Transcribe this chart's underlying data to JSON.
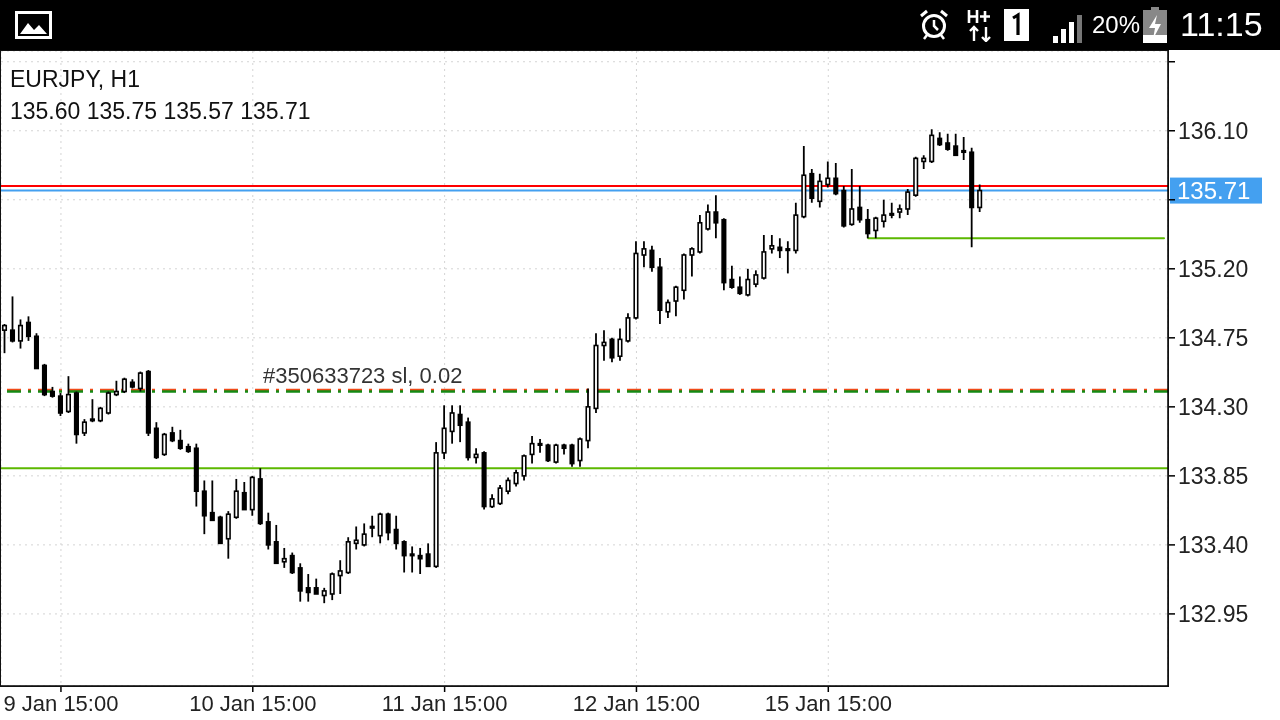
{
  "chart_data": {
    "type": "candlestick",
    "title": "EURJPY, H1",
    "subtitle": "135.60 135.75 135.57 135.71",
    "categories": [
      null,
      null,
      null,
      null,
      null,
      null,
      null,
      "9 Jan 15:00",
      null,
      null,
      null,
      null,
      null,
      null,
      null,
      null,
      null,
      null,
      null,
      null,
      null,
      null,
      null,
      null,
      null,
      null,
      null,
      null,
      null,
      null,
      null,
      "10 Jan 15:00",
      null,
      null,
      null,
      null,
      null,
      null,
      null,
      null,
      null,
      null,
      null,
      null,
      null,
      null,
      null,
      null,
      null,
      null,
      null,
      null,
      null,
      null,
      null,
      "11 Jan 15:00",
      null,
      null,
      null,
      null,
      null,
      null,
      null,
      null,
      null,
      null,
      null,
      null,
      null,
      null,
      null,
      null,
      null,
      null,
      null,
      null,
      null,
      null,
      null,
      "12 Jan 15:00",
      null,
      null,
      null,
      null,
      null,
      null,
      null,
      null,
      null,
      null,
      null,
      null,
      null,
      null,
      null,
      null,
      null,
      null,
      null,
      null,
      null,
      null,
      null,
      "15 Jan 15:00",
      null,
      null,
      null,
      null,
      null,
      null,
      null,
      null,
      null,
      null,
      null,
      null,
      null,
      null,
      null,
      null,
      null,
      null,
      null,
      null,
      null,
      null,
      null,
      null,
      null,
      null,
      null,
      null,
      null,
      null,
      null,
      null,
      null,
      null,
      null,
      null,
      null,
      null,
      null,
      null,
      null,
      null
    ],
    "ohlc": [
      [
        134.8,
        134.84,
        134.65,
        134.83
      ],
      [
        134.8,
        135.02,
        134.72,
        134.73
      ],
      [
        134.73,
        134.87,
        134.68,
        134.83
      ],
      [
        134.85,
        134.89,
        134.73,
        134.76
      ],
      [
        134.76,
        134.78,
        134.55,
        134.55
      ],
      [
        134.57,
        134.58,
        134.37,
        134.38
      ],
      [
        134.4,
        134.43,
        134.36,
        134.37
      ],
      [
        134.37,
        134.39,
        134.24,
        134.26
      ],
      [
        134.27,
        134.5,
        134.26,
        134.38
      ],
      [
        134.39,
        134.4,
        134.06,
        134.12
      ],
      [
        134.13,
        134.22,
        134.11,
        134.2
      ],
      [
        134.22,
        134.35,
        134.2,
        134.21
      ],
      [
        134.21,
        134.3,
        134.2,
        134.29
      ],
      [
        134.26,
        134.4,
        134.25,
        134.39
      ],
      [
        134.38,
        134.47,
        134.37,
        134.4
      ],
      [
        134.4,
        134.49,
        134.39,
        134.48
      ],
      [
        134.46,
        134.48,
        134.42,
        134.43
      ],
      [
        134.42,
        134.53,
        134.4,
        134.52
      ],
      [
        134.53,
        134.54,
        134.11,
        134.13
      ],
      [
        134.16,
        134.2,
        133.96,
        133.97
      ],
      [
        133.99,
        134.13,
        133.98,
        134.12
      ],
      [
        134.13,
        134.17,
        134.07,
        134.08
      ],
      [
        134.08,
        134.15,
        134.02,
        134.03
      ],
      [
        134.04,
        134.06,
        134.0,
        134.01
      ],
      [
        134.03,
        134.06,
        133.65,
        133.75
      ],
      [
        133.75,
        133.82,
        133.47,
        133.59
      ],
      [
        133.61,
        133.82,
        133.56,
        133.56
      ],
      [
        133.58,
        133.59,
        133.41,
        133.41
      ],
      [
        133.44,
        133.62,
        133.31,
        133.6
      ],
      [
        133.58,
        133.83,
        133.57,
        133.75
      ],
      [
        133.74,
        133.81,
        133.63,
        133.63
      ],
      [
        133.63,
        133.85,
        133.59,
        133.84
      ],
      [
        133.83,
        133.9,
        133.53,
        133.54
      ],
      [
        133.55,
        133.61,
        133.37,
        133.4
      ],
      [
        133.42,
        133.53,
        133.28,
        133.28
      ],
      [
        133.29,
        133.38,
        133.25,
        133.31
      ],
      [
        133.33,
        133.35,
        133.21,
        133.22
      ],
      [
        133.25,
        133.28,
        133.03,
        133.1
      ],
      [
        133.12,
        133.21,
        133.03,
        133.09
      ],
      [
        133.12,
        133.18,
        133.08,
        133.08
      ],
      [
        133.07,
        133.12,
        133.02,
        133.1
      ],
      [
        133.08,
        133.22,
        133.04,
        133.21
      ],
      [
        133.2,
        133.3,
        133.08,
        133.23
      ],
      [
        133.22,
        133.45,
        133.21,
        133.42
      ],
      [
        133.41,
        133.52,
        133.37,
        133.43
      ],
      [
        133.4,
        133.54,
        133.39,
        133.47
      ],
      [
        133.52,
        133.59,
        133.45,
        133.51
      ],
      [
        133.46,
        133.61,
        133.41,
        133.6
      ],
      [
        133.6,
        133.61,
        133.43,
        133.48
      ],
      [
        133.5,
        133.59,
        133.37,
        133.41
      ],
      [
        133.42,
        133.43,
        133.22,
        133.33
      ],
      [
        133.34,
        133.39,
        133.22,
        133.33
      ],
      [
        133.33,
        133.38,
        133.21,
        133.31
      ],
      [
        133.34,
        133.41,
        133.26,
        133.26
      ],
      [
        133.26,
        134.07,
        133.25,
        134.0
      ],
      [
        134.0,
        134.31,
        133.96,
        134.16
      ],
      [
        134.14,
        134.31,
        134.06,
        134.26
      ],
      [
        134.25,
        134.31,
        134.07,
        134.18
      ],
      [
        134.2,
        134.23,
        133.95,
        133.97
      ],
      [
        133.97,
        134.03,
        133.93,
        133.99
      ],
      [
        134.0,
        134.01,
        133.63,
        133.65
      ],
      [
        133.65,
        133.73,
        133.64,
        133.7
      ],
      [
        133.67,
        133.79,
        133.66,
        133.77
      ],
      [
        133.75,
        133.84,
        133.73,
        133.82
      ],
      [
        133.8,
        133.89,
        133.78,
        133.87
      ],
      [
        133.85,
        133.99,
        133.82,
        133.98
      ],
      [
        133.99,
        134.11,
        133.93,
        134.06
      ],
      [
        134.06,
        134.09,
        134.0,
        134.05
      ],
      [
        134.05,
        134.06,
        133.94,
        133.95
      ],
      [
        133.94,
        134.06,
        133.93,
        134.05
      ],
      [
        134.05,
        134.06,
        133.99,
        134.03
      ],
      [
        134.05,
        134.06,
        133.91,
        133.93
      ],
      [
        133.95,
        134.1,
        133.91,
        134.09
      ],
      [
        134.08,
        134.42,
        134.03,
        134.3
      ],
      [
        134.29,
        134.78,
        134.26,
        134.7
      ],
      [
        134.7,
        134.8,
        134.6,
        134.72
      ],
      [
        134.74,
        134.75,
        134.59,
        134.62
      ],
      [
        134.63,
        134.81,
        134.6,
        134.74
      ],
      [
        134.73,
        134.91,
        134.72,
        134.88
      ],
      [
        134.88,
        135.38,
        134.87,
        135.3
      ],
      [
        135.29,
        135.38,
        135.21,
        135.33
      ],
      [
        135.32,
        135.35,
        135.18,
        135.21
      ],
      [
        135.21,
        135.27,
        134.84,
        134.93
      ],
      [
        134.92,
        135.0,
        134.88,
        134.98
      ],
      [
        134.99,
        135.09,
        134.89,
        135.08
      ],
      [
        135.06,
        135.3,
        135.0,
        135.29
      ],
      [
        135.29,
        135.34,
        135.15,
        135.33
      ],
      [
        135.31,
        135.55,
        135.3,
        135.5
      ],
      [
        135.46,
        135.62,
        135.45,
        135.57
      ],
      [
        135.57,
        135.68,
        135.4,
        135.5
      ],
      [
        135.52,
        135.53,
        135.06,
        135.11
      ],
      [
        135.13,
        135.22,
        135.07,
        135.08
      ],
      [
        135.08,
        135.15,
        135.03,
        135.04
      ],
      [
        135.03,
        135.2,
        135.02,
        135.13
      ],
      [
        135.1,
        135.19,
        135.08,
        135.16
      ],
      [
        135.14,
        135.42,
        135.13,
        135.31
      ],
      [
        135.33,
        135.42,
        135.3,
        135.35
      ],
      [
        135.34,
        135.4,
        135.27,
        135.32
      ],
      [
        135.33,
        135.38,
        135.17,
        135.32
      ],
      [
        135.32,
        135.63,
        135.3,
        135.55
      ],
      [
        135.54,
        136.0,
        135.53,
        135.81
      ],
      [
        135.82,
        135.85,
        135.63,
        135.66
      ],
      [
        135.64,
        135.82,
        135.6,
        135.77
      ],
      [
        135.75,
        135.9,
        135.73,
        135.79
      ],
      [
        135.79,
        135.89,
        135.68,
        135.69
      ],
      [
        135.71,
        135.74,
        135.47,
        135.48
      ],
      [
        135.49,
        135.85,
        135.48,
        135.59
      ],
      [
        135.6,
        135.74,
        135.5,
        135.52
      ],
      [
        135.52,
        135.59,
        135.4,
        135.43
      ],
      [
        135.45,
        135.54,
        135.4,
        135.53
      ],
      [
        135.51,
        135.65,
        135.47,
        135.55
      ],
      [
        135.56,
        135.63,
        135.53,
        135.55
      ],
      [
        135.57,
        135.62,
        135.53,
        135.59
      ],
      [
        135.59,
        135.72,
        135.55,
        135.7
      ],
      [
        135.68,
        135.93,
        135.67,
        135.92
      ],
      [
        135.9,
        135.94,
        135.85,
        135.92
      ],
      [
        135.9,
        136.11,
        135.89,
        136.07
      ],
      [
        136.05,
        136.09,
        136.0,
        136.01
      ],
      [
        136.02,
        136.08,
        135.97,
        135.98
      ],
      [
        136.0,
        136.08,
        135.94,
        135.94
      ],
      [
        135.97,
        136.06,
        135.91,
        135.96
      ],
      [
        135.96,
        135.99,
        135.34,
        135.6
      ],
      [
        135.6,
        135.75,
        135.57,
        135.71
      ],
      null,
      null,
      null,
      null,
      null,
      null,
      null,
      null,
      null,
      null,
      null,
      null,
      null,
      null,
      null,
      null,
      null,
      null,
      null,
      null,
      null,
      null,
      null
    ],
    "ylim": [
      132.48,
      136.62
    ],
    "yticks": [
      132.95,
      {
        "value": 133.4,
        "label": "133.40"
      },
      133.85,
      {
        "value": 134.3,
        "label": "134.30"
      },
      134.75,
      {
        "value": 135.2,
        "label": "135.20"
      },
      {
        "value": 135.65,
        "label": null
      },
      {
        "value": 136.1,
        "label": "136.10"
      },
      {
        "value": 136.55,
        "label": null
      }
    ],
    "grid": true,
    "ref_lines": [
      {
        "axis": "y",
        "value": 135.74,
        "color": "#ff0000",
        "line_style": "solid"
      },
      {
        "axis": "y",
        "value": 135.71,
        "label": "135.71",
        "color": "#44a0f0",
        "line_style": "solid"
      },
      {
        "axis": "y",
        "value": 134.41,
        "label": "#350633723 sl, 0.02",
        "color": "#f04a18",
        "line_style": "dashdot"
      },
      {
        "axis": "y",
        "value": 134.4,
        "color": "#148a14",
        "line_style": "dashdot"
      },
      {
        "axis": "y",
        "value": 133.9,
        "color": "#5cb800",
        "line_style": "solid"
      }
    ],
    "series": [
      {
        "type": "line",
        "color": "#5cb800",
        "values": [
          null,
          null,
          null,
          null,
          null,
          null,
          null,
          null,
          null,
          null,
          null,
          null,
          null,
          null,
          null,
          null,
          null,
          null,
          null,
          null,
          null,
          null,
          null,
          null,
          null,
          null,
          null,
          null,
          null,
          null,
          null,
          null,
          null,
          null,
          null,
          null,
          null,
          null,
          null,
          null,
          null,
          null,
          null,
          null,
          null,
          null,
          null,
          null,
          null,
          null,
          null,
          null,
          null,
          null,
          null,
          null,
          null,
          null,
          null,
          null,
          null,
          null,
          null,
          null,
          null,
          null,
          null,
          null,
          null,
          null,
          null,
          null,
          null,
          null,
          null,
          null,
          null,
          null,
          null,
          null,
          null,
          null,
          null,
          null,
          null,
          null,
          null,
          null,
          null,
          null,
          null,
          null,
          null,
          null,
          null,
          null,
          null,
          null,
          null,
          null,
          null,
          null,
          null,
          null,
          null,
          null,
          null,
          null,
          135.4,
          135.4,
          135.4,
          135.4,
          135.4,
          135.4,
          135.4,
          135.4,
          135.4,
          135.4,
          135.4,
          135.4,
          135.4,
          135.4,
          135.4,
          135.4,
          135.4,
          135.4,
          135.4,
          135.4,
          135.4,
          135.4,
          135.4,
          135.4,
          135.4,
          135.4,
          135.4,
          135.4,
          135.4,
          135.4,
          135.4,
          135.4,
          135.4,
          135.4,
          135.4,
          135.4,
          135.4,
          135.4
        ]
      }
    ],
    "annotations": [
      "20%",
      "11:15"
    ]
  }
}
